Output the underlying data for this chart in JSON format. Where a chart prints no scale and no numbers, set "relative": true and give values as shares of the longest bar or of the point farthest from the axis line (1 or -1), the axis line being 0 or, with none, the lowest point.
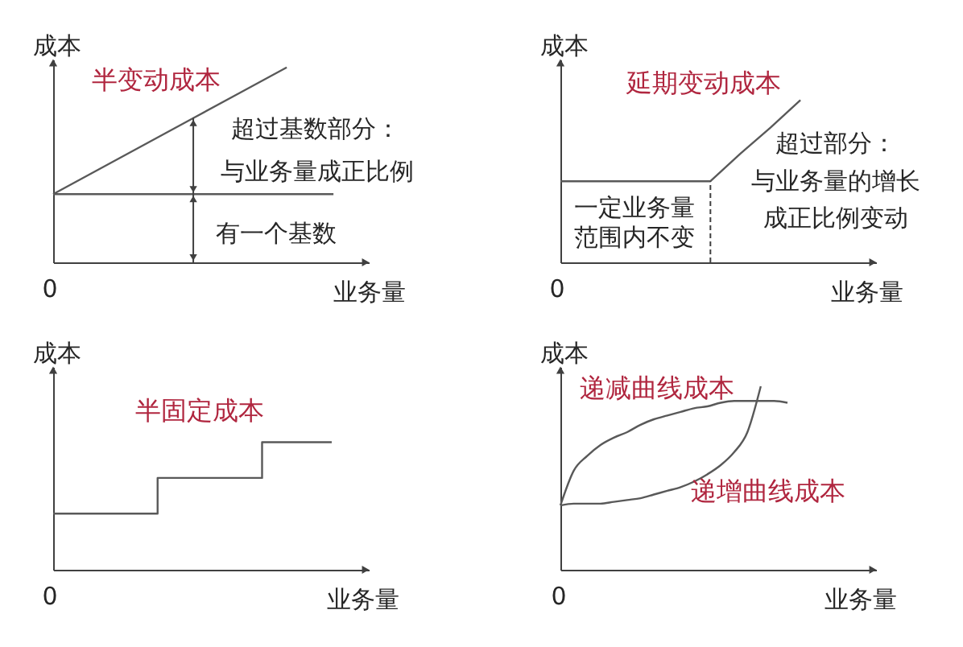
{
  "chart_data": [
    {
      "type": "line",
      "title": "半变动成本",
      "xlabel": "业务量",
      "ylabel": "成本",
      "relative": true,
      "categories": [
        null,
        null,
        null,
        null,
        null,
        null,
        null
      ],
      "series": [
        {
          "color": "#595959",
          "values": [
            0.35,
            0.48,
            0.61,
            0.74,
            0.87,
            1,
            null
          ]
        },
        {
          "color": "#595959",
          "values": [
            0.35,
            0.35,
            0.35,
            0.35,
            0.35,
            0.35,
            0.35
          ]
        }
      ],
      "annotations": [
        "超过基数部分：",
        "与业务量成正比例",
        "有一个基数",
        "0"
      ]
    },
    {
      "type": "line",
      "title": "延期变动成本",
      "xlabel": "业务量",
      "ylabel": "成本",
      "relative": true,
      "categories": [
        null,
        null,
        null,
        null,
        null,
        null,
        null,
        null,
        null
      ],
      "series": [
        {
          "color": "#595959",
          "values": [
            0.5,
            0.5,
            0.5,
            0.5,
            0.5,
            0.5,
            0.67,
            0.83,
            1
          ]
        }
      ],
      "annotations": [
        "一定业务量",
        "范围内不变",
        "超过部分：",
        "与业务量的增长",
        "成正比例变动",
        "0"
      ]
    },
    {
      "type": "step",
      "title": "半固定成本",
      "xlabel": "业务量",
      "ylabel": "成本",
      "relative": true,
      "categories": [
        null,
        null,
        null,
        null,
        null,
        null,
        null,
        null,
        null
      ],
      "series": [
        {
          "color": "#595959",
          "values": [
            0.44,
            0.44,
            0.44,
            0.72,
            0.72,
            0.72,
            1,
            1,
            1
          ]
        }
      ],
      "annotations": [
        "0"
      ]
    },
    {
      "type": "line",
      "xlabel": "业务量",
      "ylabel": "成本",
      "relative": true,
      "categories": [
        null,
        null,
        null,
        null,
        null,
        null,
        null,
        null,
        null,
        null,
        null,
        null,
        null,
        null,
        null,
        null,
        null,
        null
      ],
      "series": [
        {
          "name": "递减曲线成本",
          "color": "#595959",
          "values": [
            0.35,
            0.54,
            0.62,
            0.68,
            0.72,
            0.75,
            0.79,
            0.82,
            0.84,
            0.86,
            0.88,
            0.89,
            0.91,
            0.92,
            0.92,
            0.92,
            0.92,
            0.91
          ]
        },
        {
          "name": "递增曲线成本",
          "color": "#595959",
          "values": [
            0.35,
            0.36,
            0.36,
            0.36,
            0.37,
            0.38,
            0.39,
            0.41,
            0.43,
            0.45,
            0.48,
            0.52,
            0.57,
            0.64,
            0.75,
            1,
            null,
            null
          ]
        }
      ],
      "annotations": [
        "0"
      ]
    }
  ]
}
